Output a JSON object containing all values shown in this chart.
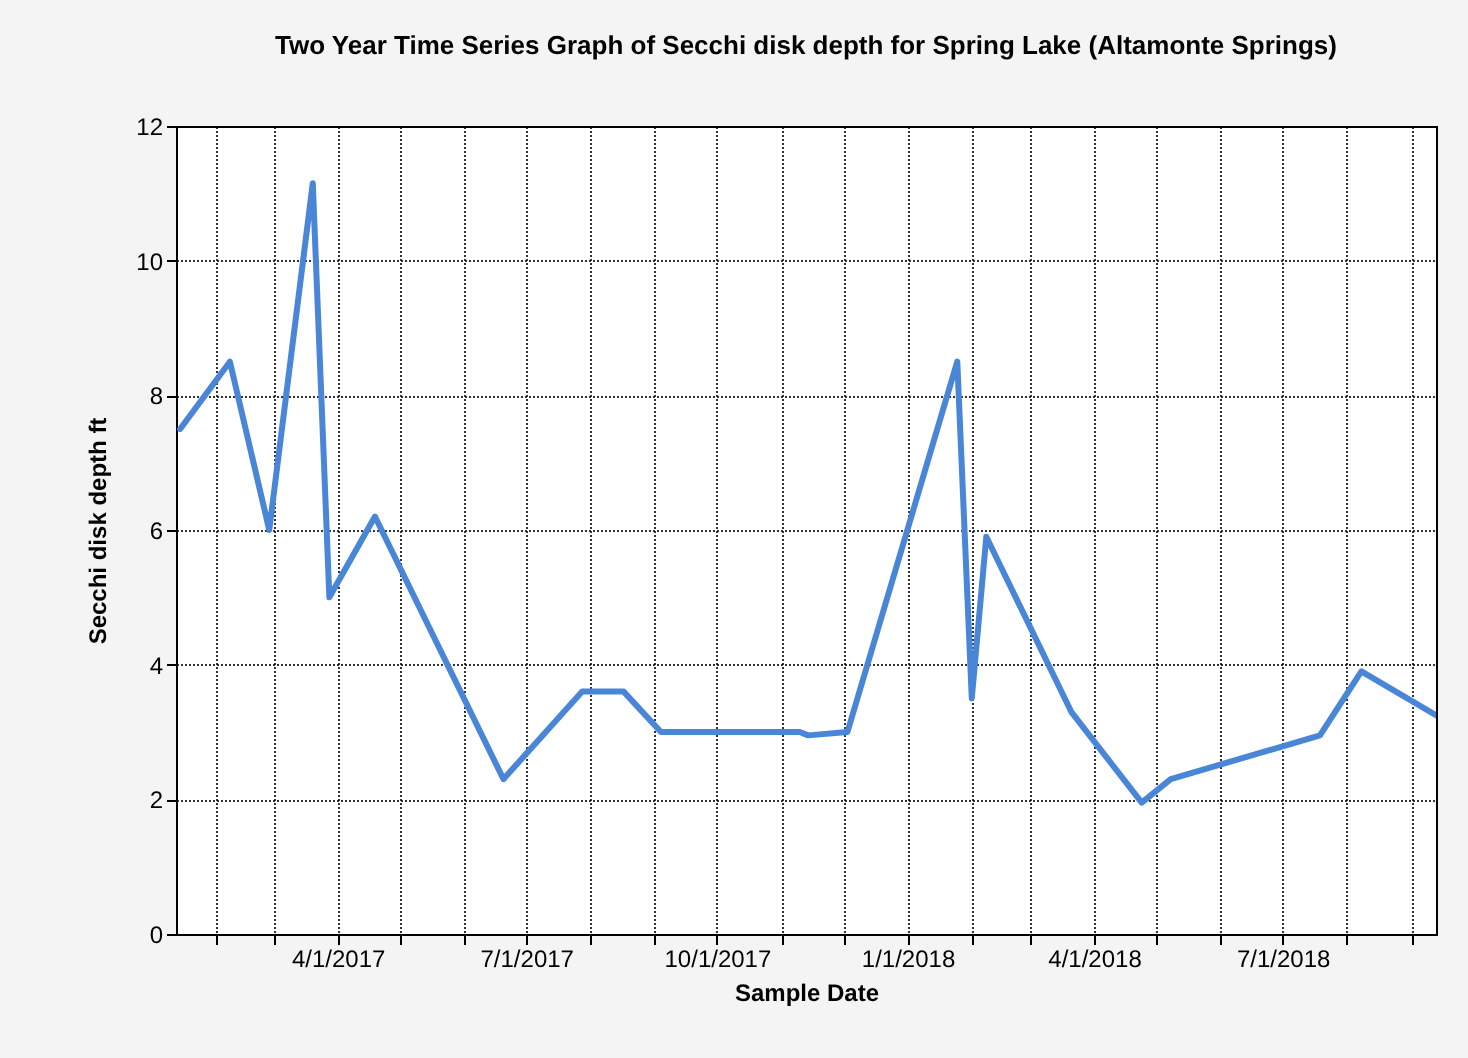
{
  "chart_data": {
    "type": "line",
    "title": "Two Year Time Series Graph of Secchi disk depth for Spring Lake (Altamonte Springs)",
    "xlabel": "Sample Date",
    "ylabel": "Secchi disk depth ft",
    "x": [
      "2017-01-15",
      "2017-02-08",
      "2017-02-27",
      "2017-03-20",
      "2017-03-28",
      "2017-04-19",
      "2017-06-20",
      "2017-07-28",
      "2017-08-17",
      "2017-09-04",
      "2017-10-17",
      "2017-11-10",
      "2017-11-14",
      "2017-12-03",
      "2018-01-25",
      "2018-02-01",
      "2018-02-08",
      "2018-03-21",
      "2018-04-24",
      "2018-05-08",
      "2018-07-19",
      "2018-08-08",
      "2018-09-13"
    ],
    "series": [
      {
        "color": "#4a86d8",
        "values": [
          7.5,
          8.5,
          6.0,
          11.15,
          5.0,
          6.2,
          2.3,
          3.6,
          3.6,
          3.0,
          3.0,
          3.0,
          2.95,
          3.0,
          8.5,
          3.5,
          5.9,
          3.3,
          1.95,
          2.3,
          2.95,
          3.9,
          3.25
        ]
      }
    ],
    "xlim": [
      "2017-01-13",
      "2018-09-13"
    ],
    "xticks": [
      {
        "value": "2017-02-01",
        "label": null
      },
      {
        "value": "2017-03-01",
        "label": null
      },
      {
        "value": "2017-04-01",
        "label": "4/1/2017"
      },
      {
        "value": "2017-05-01",
        "label": null
      },
      {
        "value": "2017-06-01",
        "label": null
      },
      {
        "value": "2017-07-01",
        "label": "7/1/2017"
      },
      {
        "value": "2017-08-01",
        "label": null
      },
      {
        "value": "2017-09-01",
        "label": null
      },
      {
        "value": "2017-10-01",
        "label": "10/1/2017"
      },
      {
        "value": "2017-11-01",
        "label": null
      },
      {
        "value": "2017-12-01",
        "label": null
      },
      {
        "value": "2018-01-01",
        "label": "1/1/2018"
      },
      {
        "value": "2018-02-01",
        "label": null
      },
      {
        "value": "2018-03-01",
        "label": null
      },
      {
        "value": "2018-04-01",
        "label": "4/1/2018"
      },
      {
        "value": "2018-05-01",
        "label": null
      },
      {
        "value": "2018-06-01",
        "label": null
      },
      {
        "value": "2018-07-01",
        "label": "7/1/2018"
      },
      {
        "value": "2018-08-01",
        "label": null
      },
      {
        "value": "2018-09-01",
        "label": null
      }
    ],
    "ylim": [
      0,
      12
    ],
    "yticks": [
      0,
      2,
      4,
      6,
      8,
      10,
      12
    ],
    "grid": true,
    "marker": "none",
    "line_style": "solid"
  }
}
